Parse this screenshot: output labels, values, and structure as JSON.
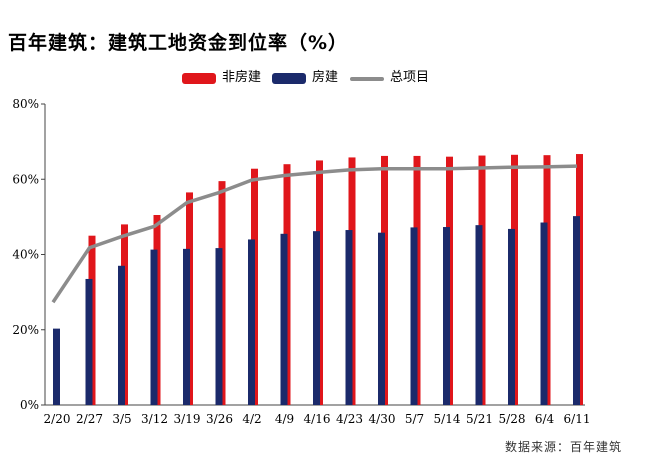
{
  "header": {
    "title": "百年建筑：建筑工地资金到位率（%）"
  },
  "footer": {
    "source": "数据来源：百年建筑"
  },
  "colors": {
    "non_housing": "#E0161B",
    "housing": "#1B2A6B",
    "total": "#8C8C8C"
  },
  "chart_data": {
    "type": "bar",
    "title": "百年建筑：建筑工地资金到位率（%）",
    "categories": [
      "2/20",
      "2/27",
      "3/5",
      "3/12",
      "3/19",
      "3/26",
      "4/2",
      "4/9",
      "4/16",
      "4/23",
      "4/30",
      "5/7",
      "5/14",
      "5/21",
      "5/28",
      "6/4",
      "6/11"
    ],
    "ylim": [
      0,
      80
    ],
    "yticks": [
      "0%",
      "20%",
      "40%",
      "60%",
      "80%"
    ],
    "grid": false,
    "legend": "top",
    "series": [
      {
        "name": "非房建",
        "type": "bar",
        "values": [
          null,
          45.0,
          48.0,
          50.5,
          56.5,
          59.5,
          62.8,
          64.0,
          65.0,
          65.8,
          66.2,
          66.2,
          66.0,
          66.3,
          66.5,
          66.4,
          66.7
        ]
      },
      {
        "name": "房建",
        "type": "bar",
        "values": [
          20.3,
          33.5,
          37.0,
          41.3,
          41.5,
          41.7,
          44.0,
          45.5,
          46.2,
          46.5,
          45.8,
          47.2,
          47.3,
          47.8,
          46.8,
          48.5,
          50.2
        ]
      },
      {
        "name": "总项目",
        "type": "line",
        "values": [
          27.3,
          41.8,
          44.8,
          47.5,
          53.8,
          56.5,
          59.8,
          61.0,
          61.8,
          62.5,
          62.8,
          62.8,
          62.8,
          63.0,
          63.2,
          63.3,
          63.5
        ]
      }
    ]
  }
}
